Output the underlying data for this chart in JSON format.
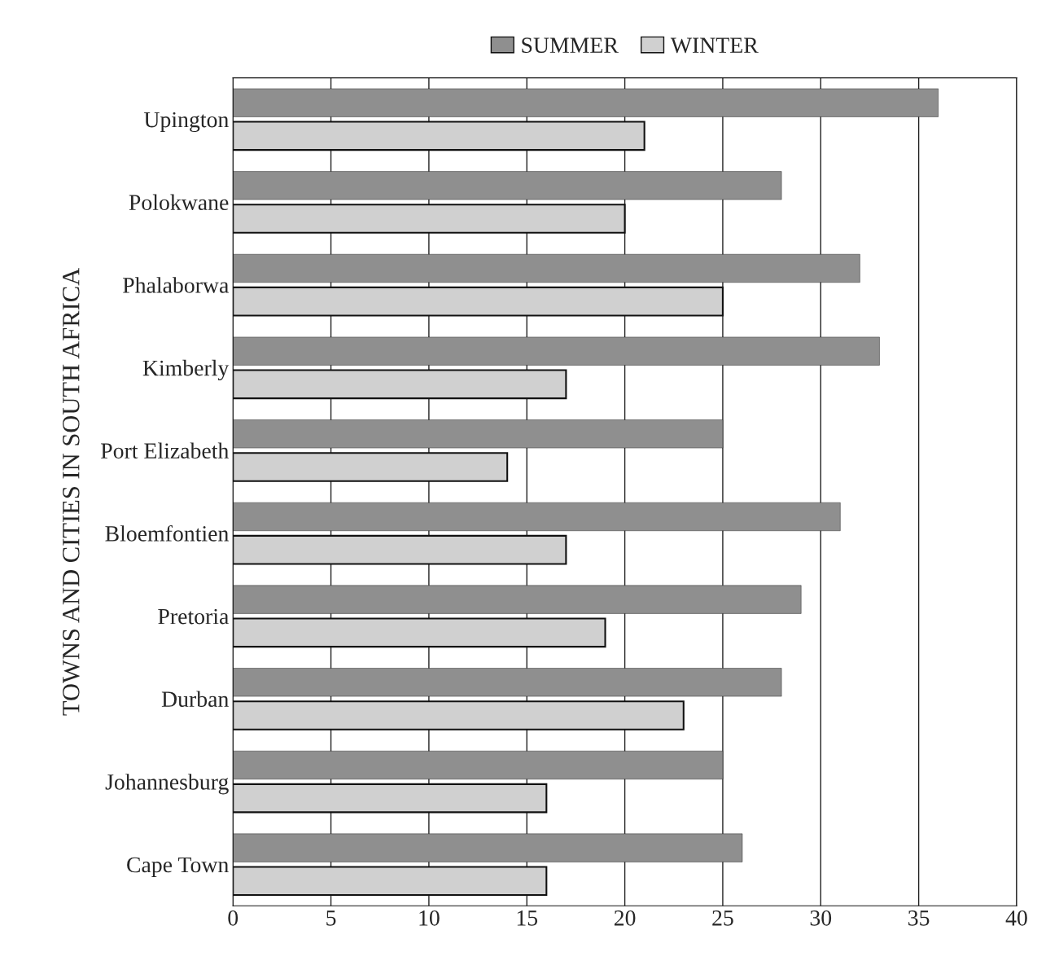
{
  "chart_data": {
    "type": "bar",
    "orientation": "horizontal",
    "ylabel": "TOWNS AND CITIES IN SOUTH AFRICA",
    "categories": [
      "Upington",
      "Polokwane",
      "Phalaborwa",
      "Kimberly",
      "Port Elizabeth",
      "Bloemfontien",
      "Pretoria",
      "Durban",
      "Johannesburg",
      "Cape Town"
    ],
    "series": [
      {
        "name": "SUMMER",
        "color": "#8f8f8f",
        "values": [
          36,
          28,
          32,
          33,
          25,
          31,
          29,
          28,
          25,
          26
        ]
      },
      {
        "name": "WINTER",
        "color": "#d0d0d0",
        "values": [
          21,
          20,
          25,
          17,
          14,
          17,
          19,
          23,
          16,
          16
        ]
      }
    ],
    "xlim": [
      0,
      40
    ],
    "xticks": [
      0,
      5,
      10,
      15,
      20,
      25,
      30,
      35,
      40
    ],
    "grid": "x",
    "legend": "top"
  }
}
